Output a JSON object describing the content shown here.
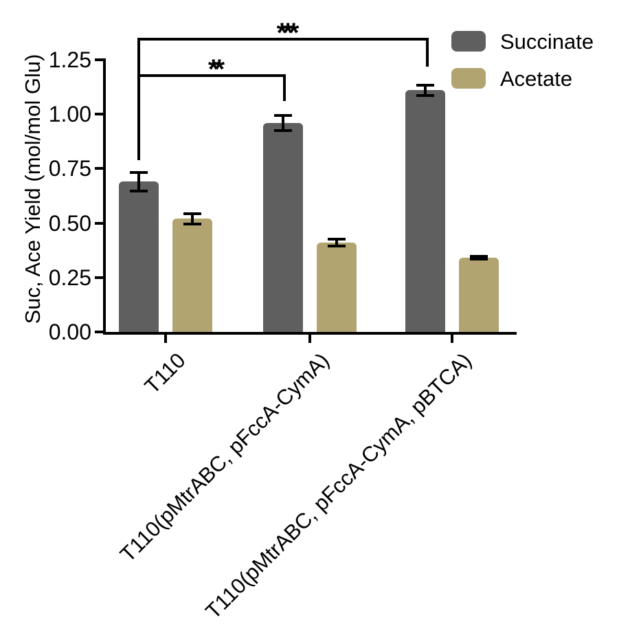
{
  "figure": {
    "background_color": "#FFFFFF"
  },
  "chart_data": {
    "type": "bar",
    "title": "",
    "xlabel": "",
    "ylabel": "Suc, Ace Yield (mol/mol Glu)",
    "ylim": [
      0,
      1.25
    ],
    "ytick_labels": [
      "0.00",
      "0.25",
      "0.50",
      "0.75",
      "1.00",
      "1.25"
    ],
    "grid": false,
    "categories": [
      "T110",
      "T110(pMtrABC, pFccA-CymA)",
      "T110(pMtrABC, pFccA-CymA, pBTCA)"
    ],
    "series": [
      {
        "name": "Succinate",
        "color": "#5F5F5F",
        "values": [
          0.69,
          0.96,
          1.11
        ],
        "errors": [
          0.05,
          0.04,
          0.03
        ]
      },
      {
        "name": "Acetate",
        "color": "#B1A470",
        "values": [
          0.52,
          0.41,
          0.34
        ],
        "errors": [
          0.03,
          0.022,
          0.012
        ]
      }
    ],
    "legend": {
      "position": "top-right",
      "entries": [
        "Succinate",
        "Acetate"
      ]
    },
    "significance": [
      {
        "label": "**",
        "series": "Succinate",
        "from_category": 0,
        "to_category": 1
      },
      {
        "label": "***",
        "series": "Succinate",
        "from_category": 0,
        "to_category": 2
      }
    ],
    "error_bar_style": "mean ± error, caps above and below",
    "axis_color": "#000000",
    "text_color": "#000000"
  }
}
